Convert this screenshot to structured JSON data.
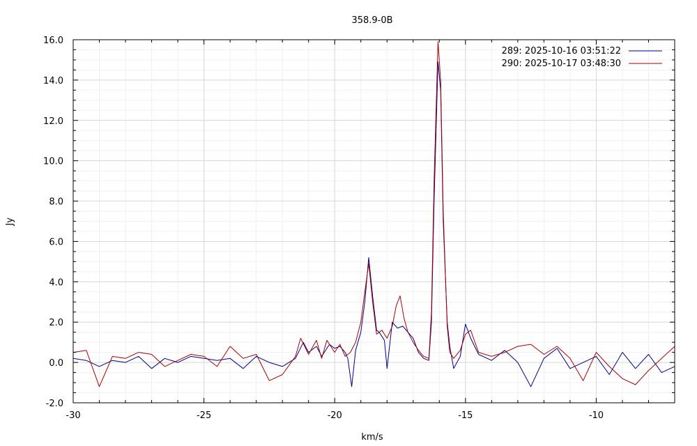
{
  "chart_data": {
    "type": "line",
    "title": "358.9-0B",
    "xlabel": "km/s",
    "ylabel": "Jy",
    "xlim": [
      -30,
      -7
    ],
    "ylim": [
      -2,
      16
    ],
    "x_ticks": [
      -30,
      -25,
      -20,
      -15,
      -10
    ],
    "y_ticks": [
      -2.0,
      0.0,
      2.0,
      4.0,
      6.0,
      8.0,
      10.0,
      12.0,
      14.0,
      16.0
    ],
    "x_tick_labels": [
      "-30",
      "-25",
      "-20",
      "-15",
      "-10"
    ],
    "y_tick_labels": [
      "-2.0",
      "0.0",
      "2.0",
      "4.0",
      "6.0",
      "8.0",
      "10.0",
      "12.0",
      "14.0",
      "16.0"
    ],
    "grid": true,
    "legend_position": "top-right",
    "series": [
      {
        "name": "289:   2025-10-16 03:51:22",
        "color": "#00008b",
        "points": [
          [
            -30.0,
            0.2
          ],
          [
            -29.5,
            0.1
          ],
          [
            -29.0,
            -0.2
          ],
          [
            -28.5,
            0.1
          ],
          [
            -28.0,
            0.0
          ],
          [
            -27.5,
            0.3
          ],
          [
            -27.0,
            -0.3
          ],
          [
            -26.5,
            0.2
          ],
          [
            -26.0,
            0.0
          ],
          [
            -25.5,
            0.3
          ],
          [
            -25.0,
            0.2
          ],
          [
            -24.5,
            0.1
          ],
          [
            -24.0,
            0.2
          ],
          [
            -23.5,
            -0.3
          ],
          [
            -23.0,
            0.3
          ],
          [
            -22.5,
            0.0
          ],
          [
            -22.0,
            -0.2
          ],
          [
            -21.5,
            0.2
          ],
          [
            -21.2,
            1.0
          ],
          [
            -21.0,
            0.5
          ],
          [
            -20.7,
            0.8
          ],
          [
            -20.5,
            0.3
          ],
          [
            -20.2,
            0.9
          ],
          [
            -20.0,
            0.7
          ],
          [
            -19.8,
            0.8
          ],
          [
            -19.6,
            0.5
          ],
          [
            -19.5,
            0.2
          ],
          [
            -19.35,
            -1.2
          ],
          [
            -19.2,
            0.6
          ],
          [
            -19.0,
            1.5
          ],
          [
            -18.85,
            3.0
          ],
          [
            -18.7,
            5.2
          ],
          [
            -18.55,
            3.3
          ],
          [
            -18.4,
            1.6
          ],
          [
            -18.3,
            1.5
          ],
          [
            -18.1,
            1.1
          ],
          [
            -18.0,
            -0.3
          ],
          [
            -17.8,
            2.0
          ],
          [
            -17.6,
            1.7
          ],
          [
            -17.4,
            1.8
          ],
          [
            -17.2,
            1.5
          ],
          [
            -17.0,
            1.2
          ],
          [
            -16.8,
            0.5
          ],
          [
            -16.6,
            0.2
          ],
          [
            -16.4,
            0.1
          ],
          [
            -16.3,
            2.0
          ],
          [
            -16.2,
            8.0
          ],
          [
            -16.05,
            14.9
          ],
          [
            -15.95,
            13.5
          ],
          [
            -15.85,
            7.0
          ],
          [
            -15.7,
            2.0
          ],
          [
            -15.6,
            0.8
          ],
          [
            -15.45,
            -0.3
          ],
          [
            -15.2,
            0.3
          ],
          [
            -15.0,
            1.9
          ],
          [
            -14.8,
            1.2
          ],
          [
            -14.5,
            0.4
          ],
          [
            -14.0,
            0.1
          ],
          [
            -13.5,
            0.6
          ],
          [
            -13.0,
            0.0
          ],
          [
            -12.5,
            -1.2
          ],
          [
            -12.0,
            0.2
          ],
          [
            -11.5,
            0.7
          ],
          [
            -11.0,
            -0.3
          ],
          [
            -10.5,
            0.0
          ],
          [
            -10.0,
            0.3
          ],
          [
            -9.5,
            -0.6
          ],
          [
            -9.0,
            0.5
          ],
          [
            -8.5,
            -0.3
          ],
          [
            -8.0,
            0.4
          ],
          [
            -7.5,
            -0.5
          ],
          [
            -7.0,
            -0.2
          ]
        ]
      },
      {
        "name": "290:   2025-10-17 03:48:30",
        "color": "#aa0000",
        "points": [
          [
            -30.0,
            0.5
          ],
          [
            -29.5,
            0.6
          ],
          [
            -29.0,
            -1.2
          ],
          [
            -28.5,
            0.3
          ],
          [
            -28.0,
            0.2
          ],
          [
            -27.5,
            0.5
          ],
          [
            -27.0,
            0.4
          ],
          [
            -26.5,
            -0.2
          ],
          [
            -26.0,
            0.1
          ],
          [
            -25.5,
            0.4
          ],
          [
            -25.0,
            0.3
          ],
          [
            -24.5,
            -0.2
          ],
          [
            -24.0,
            0.8
          ],
          [
            -23.5,
            0.2
          ],
          [
            -23.0,
            0.4
          ],
          [
            -22.5,
            -0.9
          ],
          [
            -22.0,
            -0.6
          ],
          [
            -21.5,
            0.3
          ],
          [
            -21.3,
            1.2
          ],
          [
            -21.0,
            0.4
          ],
          [
            -20.7,
            1.1
          ],
          [
            -20.5,
            0.2
          ],
          [
            -20.3,
            1.1
          ],
          [
            -20.0,
            0.5
          ],
          [
            -19.8,
            0.9
          ],
          [
            -19.6,
            0.3
          ],
          [
            -19.4,
            0.5
          ],
          [
            -19.2,
            1.0
          ],
          [
            -19.0,
            2.0
          ],
          [
            -18.85,
            3.5
          ],
          [
            -18.7,
            4.9
          ],
          [
            -18.55,
            3.0
          ],
          [
            -18.4,
            1.4
          ],
          [
            -18.2,
            1.6
          ],
          [
            -18.0,
            1.2
          ],
          [
            -17.8,
            1.8
          ],
          [
            -17.65,
            2.8
          ],
          [
            -17.5,
            3.3
          ],
          [
            -17.35,
            2.2
          ],
          [
            -17.2,
            1.5
          ],
          [
            -17.0,
            1.0
          ],
          [
            -16.8,
            0.6
          ],
          [
            -16.6,
            0.3
          ],
          [
            -16.4,
            0.2
          ],
          [
            -16.3,
            2.5
          ],
          [
            -16.2,
            9.0
          ],
          [
            -16.05,
            15.9
          ],
          [
            -15.95,
            14.0
          ],
          [
            -15.85,
            7.5
          ],
          [
            -15.7,
            1.8
          ],
          [
            -15.6,
            0.5
          ],
          [
            -15.45,
            0.2
          ],
          [
            -15.2,
            0.6
          ],
          [
            -15.0,
            1.4
          ],
          [
            -14.8,
            1.6
          ],
          [
            -14.5,
            0.5
          ],
          [
            -14.0,
            0.3
          ],
          [
            -13.5,
            0.5
          ],
          [
            -13.0,
            0.8
          ],
          [
            -12.5,
            0.9
          ],
          [
            -12.0,
            0.4
          ],
          [
            -11.5,
            0.8
          ],
          [
            -11.0,
            0.2
          ],
          [
            -10.5,
            -0.9
          ],
          [
            -10.0,
            0.5
          ],
          [
            -9.5,
            -0.2
          ],
          [
            -9.0,
            -0.8
          ],
          [
            -8.5,
            -1.1
          ],
          [
            -8.0,
            -0.4
          ],
          [
            -7.5,
            0.2
          ],
          [
            -7.0,
            0.8
          ]
        ]
      }
    ]
  }
}
